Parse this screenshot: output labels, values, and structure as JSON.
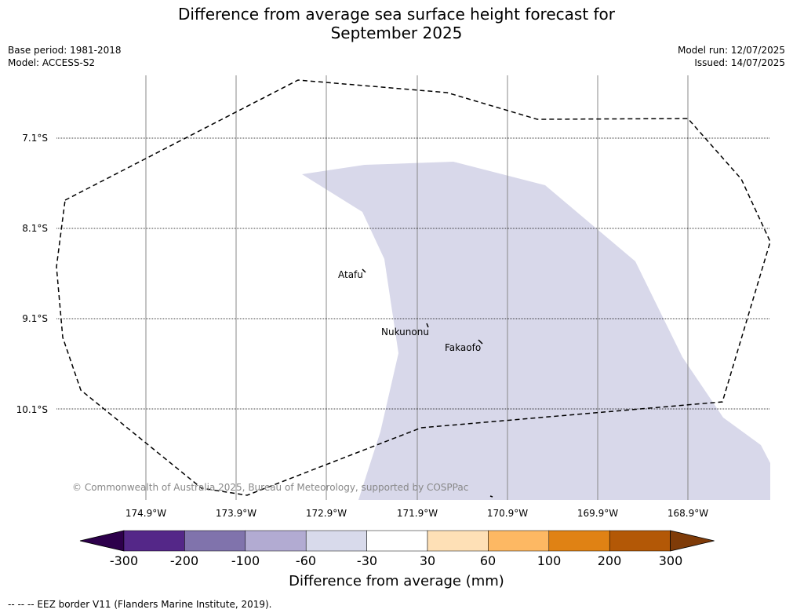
{
  "title_line1": "Difference from average sea surface height forecast for",
  "title_line2": "September 2025",
  "meta_left": {
    "line1": "Base period: 1981-2018",
    "line2": "Model: ACCESS-S2"
  },
  "meta_right": {
    "line1": "Model run: 12/07/2025",
    "line2": "Issued: 14/07/2025"
  },
  "map": {
    "lat_labels": [
      "7.1°S",
      "8.1°S",
      "9.1°S",
      "10.1°S"
    ],
    "lon_labels": [
      "174.9°W",
      "173.9°W",
      "172.9°W",
      "171.9°W",
      "170.9°W",
      "169.9°W",
      "168.9°W"
    ],
    "places": [
      "Atafu",
      "Nukunonu",
      "Fakaofo"
    ],
    "anomaly_fill_color": "#d8d8ea",
    "copyright": "© Commonwealth of Australia 2025, Bureau of Meteorology, supported by COSPPac"
  },
  "colorbar": {
    "ticks": [
      "-300",
      "-200",
      "-100",
      "-60",
      "-30",
      "30",
      "60",
      "100",
      "200",
      "300"
    ],
    "colors": [
      "#2d004b",
      "#542788",
      "#8073ac",
      "#b2abd2",
      "#d8daeb",
      "#ffffff",
      "#fee0b6",
      "#fdb863",
      "#e08214",
      "#b35806",
      "#7f3b08"
    ],
    "label": "Difference from average (mm)"
  },
  "footnote": "-- -- -- EEZ border V11 (Flanders Marine Institute, 2019)."
}
